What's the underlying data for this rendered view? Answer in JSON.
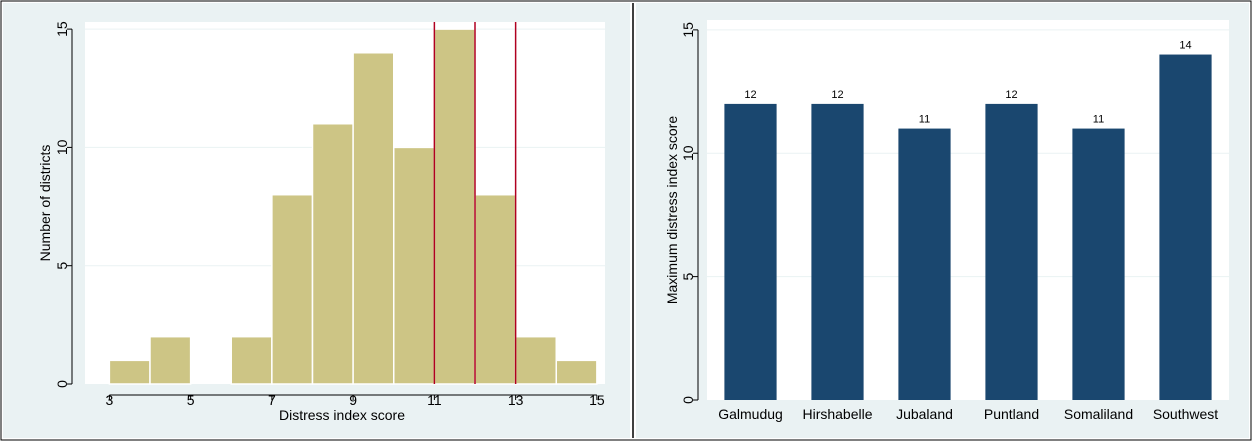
{
  "colors": {
    "panel_bg": "#EAF2F3",
    "plot_bg": "#FFFFFF",
    "grid": "#EAF2F3",
    "hist_fill": "#CDC585",
    "hist_edge": "#FFFFFF",
    "ref_line": "#B00020",
    "bar_fill": "#1A476F",
    "axis": "#000000",
    "divider": "#000000"
  },
  "chart_data": [
    {
      "type": "bar",
      "subtype": "histogram",
      "xlabel": "Distress index score",
      "ylabel": "Number of districts",
      "bin_width": 1,
      "bins": [
        {
          "start": 3,
          "end": 4,
          "count": 1
        },
        {
          "start": 4,
          "end": 5,
          "count": 2
        },
        {
          "start": 6,
          "end": 7,
          "count": 2
        },
        {
          "start": 7,
          "end": 8,
          "count": 8
        },
        {
          "start": 8,
          "end": 9,
          "count": 11
        },
        {
          "start": 9,
          "end": 10,
          "count": 14
        },
        {
          "start": 10,
          "end": 11,
          "count": 10
        },
        {
          "start": 11,
          "end": 12,
          "count": 15
        },
        {
          "start": 12,
          "end": 13,
          "count": 8
        },
        {
          "start": 13,
          "end": 14,
          "count": 2
        },
        {
          "start": 14,
          "end": 15,
          "count": 1
        }
      ],
      "reference_lines_x": [
        11,
        12,
        13
      ],
      "xlim": [
        2.4,
        15.2
      ],
      "ylim": [
        0,
        15.3
      ],
      "xticks": [
        3,
        5,
        7,
        9,
        11,
        13,
        15
      ],
      "yticks": [
        0,
        5,
        10,
        15
      ],
      "grid": true
    },
    {
      "type": "bar",
      "xlabel": "",
      "ylabel": "Maximum distress index score",
      "categories": [
        "Galmudug",
        "Hirshabelle",
        "Jubaland",
        "Puntland",
        "Somaliland",
        "Southwest"
      ],
      "values": [
        12,
        12,
        11,
        12,
        11,
        14
      ],
      "data_labels": [
        "12",
        "12",
        "11",
        "12",
        "11",
        "14"
      ],
      "ylim": [
        0,
        15.4
      ],
      "yticks": [
        0,
        5,
        10,
        15
      ],
      "grid": true
    }
  ]
}
